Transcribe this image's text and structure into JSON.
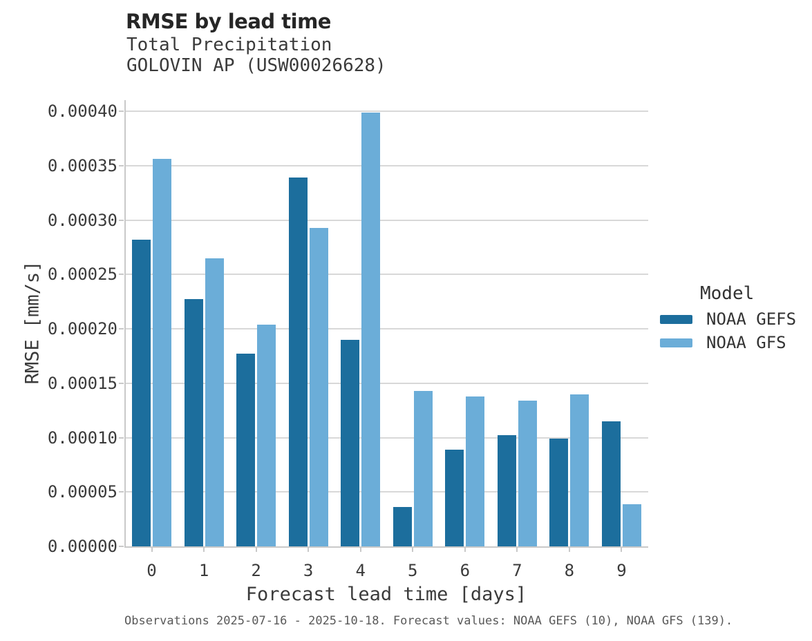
{
  "chart_data": {
    "type": "bar",
    "title": "RMSE by lead time",
    "subtitle_line1": "Total Precipitation",
    "subtitle_line2": "GOLOVIN AP (USW00026628)",
    "xlabel": "Forecast lead time [days]",
    "ylabel": "RMSE [mm/s]",
    "categories": [
      "0",
      "1",
      "2",
      "3",
      "4",
      "5",
      "6",
      "7",
      "8",
      "9"
    ],
    "series": [
      {
        "name": "NOAA GEFS",
        "color": "#1c6e9d",
        "values": [
          0.000282,
          0.000227,
          0.000177,
          0.000339,
          0.00019,
          3.6e-05,
          8.9e-05,
          0.000102,
          9.9e-05,
          0.000115
        ]
      },
      {
        "name": "NOAA GFS",
        "color": "#6badd8",
        "values": [
          0.000356,
          0.000265,
          0.000204,
          0.000293,
          0.000399,
          0.000143,
          0.000138,
          0.000134,
          0.00014,
          3.9e-05
        ]
      }
    ],
    "ylim": [
      0,
      0.0004
    ],
    "yticks": [
      {
        "value": 0.0,
        "label": "0.00000"
      },
      {
        "value": 5e-05,
        "label": "0.00005"
      },
      {
        "value": 0.0001,
        "label": "0.00010"
      },
      {
        "value": 0.00015,
        "label": "0.00015"
      },
      {
        "value": 0.0002,
        "label": "0.00020"
      },
      {
        "value": 0.00025,
        "label": "0.00025"
      },
      {
        "value": 0.0003,
        "label": "0.00030"
      },
      {
        "value": 0.00035,
        "label": "0.00035"
      },
      {
        "value": 0.0004,
        "label": "0.00040"
      }
    ],
    "grid": "horizontal",
    "legend_title": "Model",
    "legend_position": "center-right",
    "caption": "Observations 2025-07-16 - 2025-10-18. Forecast values: NOAA GEFS (10), NOAA GFS (139)."
  },
  "colors": {
    "gridline": "#d8d8d8",
    "spine": "#c9c9c9",
    "title_text": "#262626",
    "axis_text": "#3b3b3b",
    "caption_text": "#595959"
  }
}
